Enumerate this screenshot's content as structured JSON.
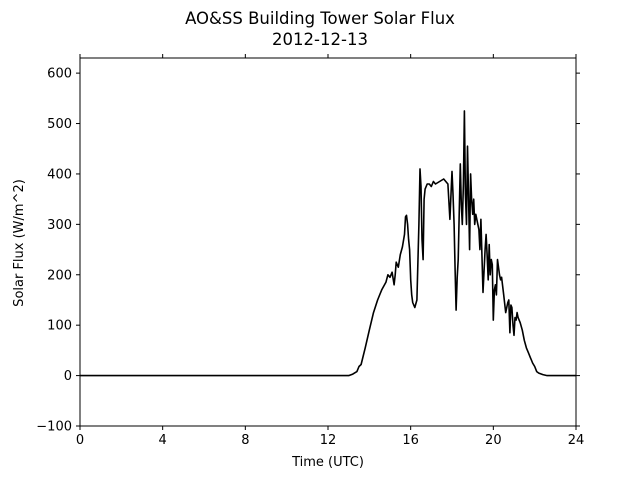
{
  "chart_data": {
    "type": "line",
    "title": "AO&SS Building Tower Solar Flux",
    "subtitle": "2012-12-13",
    "xlabel": "Time (UTC)",
    "ylabel": "Solar Flux (W/m^2)",
    "xlim": [
      0,
      24
    ],
    "ylim": [
      -100,
      630
    ],
    "xticks": [
      0,
      4,
      8,
      12,
      16,
      20,
      24
    ],
    "yticks": [
      -100,
      0,
      100,
      200,
      300,
      400,
      500,
      600
    ],
    "grid": false,
    "series": [
      {
        "color": "#000000",
        "x": [
          0,
          2,
          4,
          6,
          8,
          10,
          12,
          12.8,
          13.0,
          13.2,
          13.4,
          13.5,
          13.6,
          13.8,
          14.0,
          14.2,
          14.4,
          14.6,
          14.8,
          14.9,
          15.0,
          15.1,
          15.2,
          15.25,
          15.3,
          15.4,
          15.5,
          15.6,
          15.7,
          15.75,
          15.8,
          15.85,
          15.9,
          15.95,
          16.0,
          16.05,
          16.1,
          16.2,
          16.3,
          16.4,
          16.45,
          16.5,
          16.55,
          16.6,
          16.65,
          16.7,
          16.8,
          16.9,
          17.0,
          17.1,
          17.2,
          17.4,
          17.6,
          17.8,
          17.9,
          18.0,
          18.05,
          18.1,
          18.15,
          18.2,
          18.25,
          18.3,
          18.4,
          18.45,
          18.5,
          18.55,
          18.6,
          18.65,
          18.7,
          18.75,
          18.8,
          18.85,
          18.9,
          18.95,
          19.0,
          19.05,
          19.1,
          19.15,
          19.2,
          19.3,
          19.35,
          19.4,
          19.5,
          19.6,
          19.65,
          19.7,
          19.75,
          19.8,
          19.85,
          19.9,
          19.95,
          20.0,
          20.05,
          20.1,
          20.15,
          20.2,
          20.25,
          20.3,
          20.35,
          20.4,
          20.5,
          20.6,
          20.7,
          20.75,
          20.8,
          20.85,
          20.9,
          20.95,
          21.0,
          21.05,
          21.1,
          21.15,
          21.2,
          21.3,
          21.4,
          21.5,
          21.6,
          21.7,
          21.8,
          21.85,
          21.9,
          22.0,
          22.1,
          22.2,
          22.4,
          22.6,
          22.8,
          23.0,
          24.0
        ],
        "y": [
          0,
          0,
          0,
          0,
          0,
          0,
          0,
          0,
          0,
          3,
          8,
          18,
          22,
          55,
          90,
          125,
          150,
          170,
          185,
          200,
          195,
          205,
          180,
          200,
          225,
          215,
          240,
          255,
          280,
          315,
          318,
          300,
          270,
          250,
          190,
          160,
          145,
          135,
          150,
          300,
          410,
          375,
          270,
          230,
          350,
          370,
          380,
          380,
          375,
          385,
          380,
          385,
          390,
          380,
          310,
          405,
          360,
          300,
          210,
          130,
          195,
          230,
          420,
          340,
          300,
          380,
          525,
          360,
          300,
          455,
          360,
          250,
          400,
          350,
          320,
          350,
          300,
          320,
          310,
          290,
          250,
          310,
          165,
          250,
          280,
          240,
          190,
          260,
          200,
          230,
          220,
          110,
          170,
          180,
          160,
          230,
          215,
          200,
          190,
          195,
          160,
          125,
          145,
          150,
          85,
          140,
          135,
          100,
          80,
          115,
          110,
          125,
          115,
          105,
          90,
          70,
          55,
          45,
          35,
          30,
          25,
          18,
          8,
          5,
          2,
          0,
          0,
          0,
          0
        ]
      }
    ]
  }
}
